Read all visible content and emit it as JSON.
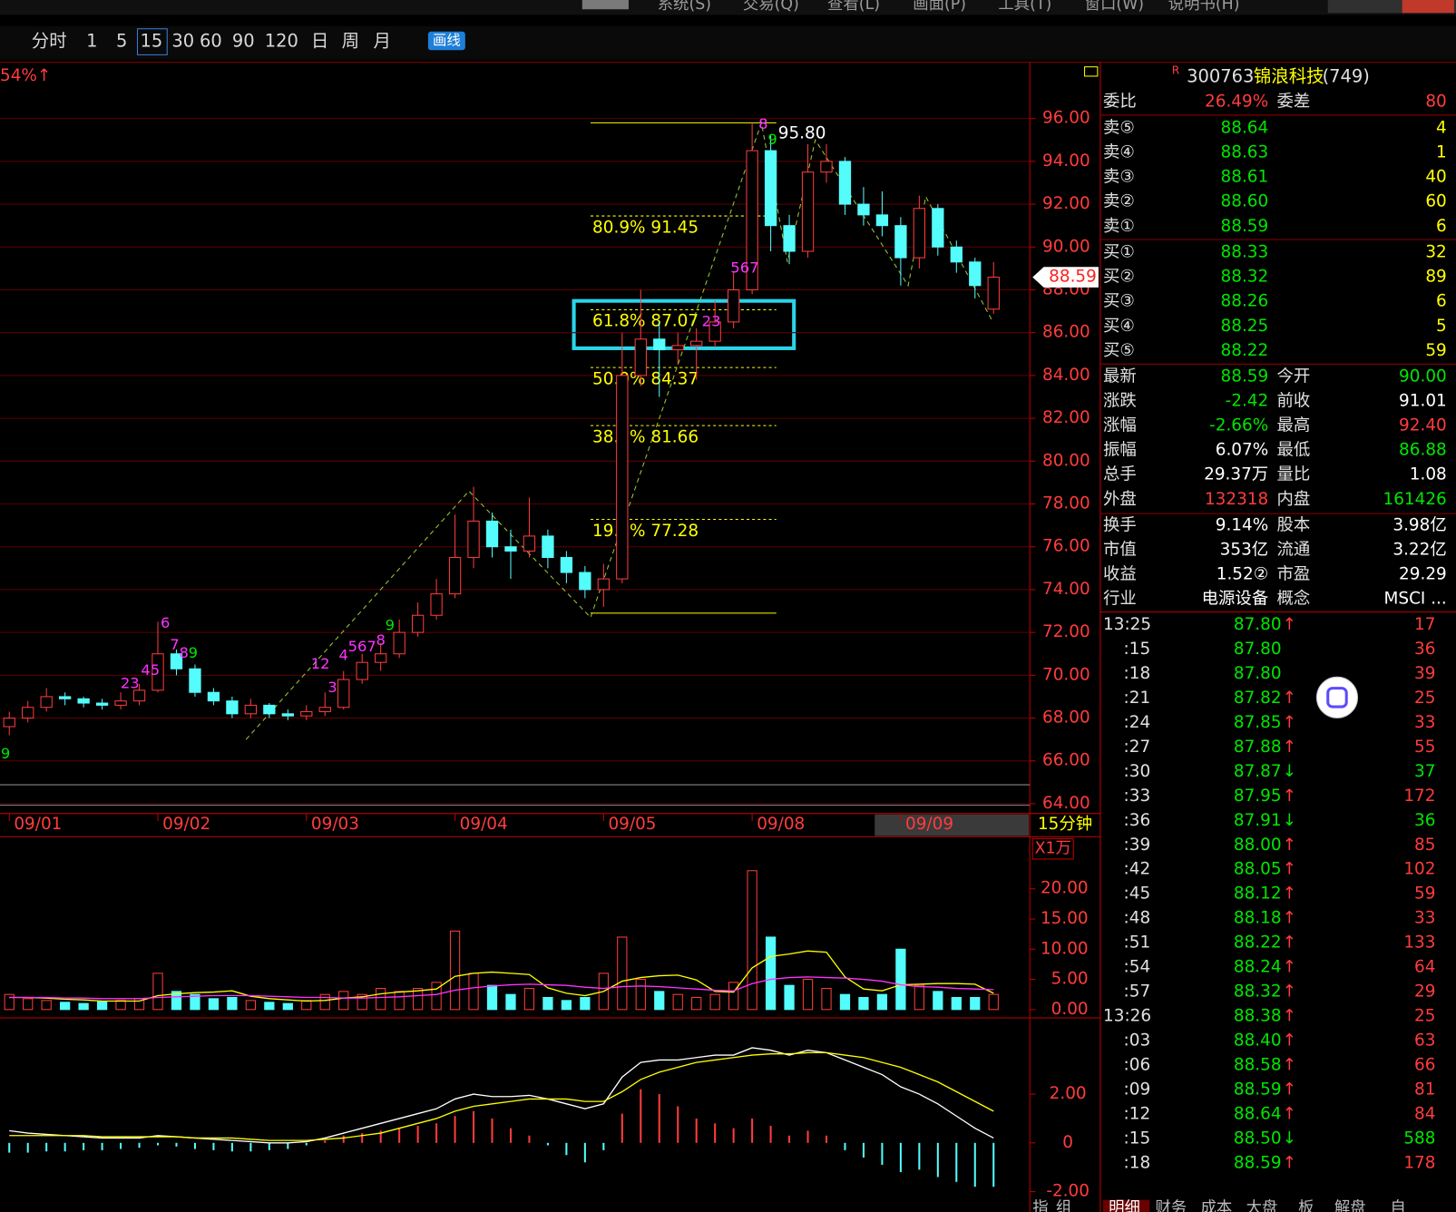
{
  "menu": [
    "系统(S)",
    "交易(Q)",
    "查看(L)",
    "画面(P)",
    "工具(T)",
    "窗口(W)",
    "说明书(H)"
  ],
  "toolbar": [
    "分时",
    "1",
    "5",
    "15",
    "30",
    "60",
    "90",
    "120",
    "日",
    "周",
    "月"
  ],
  "draw_button": "画线",
  "corner_label": "54%↑",
  "price_chart": {
    "type": "candlestick",
    "ylim": [
      63.8,
      98.5
    ],
    "yticks": [
      {
        "value": 96,
        "label": "96.00"
      },
      {
        "value": 94,
        "label": "94.00"
      },
      {
        "value": 92,
        "label": "92.00"
      },
      {
        "value": 90,
        "label": "90.00"
      },
      {
        "value": 88,
        "label": "88.00"
      },
      {
        "value": 86,
        "label": "86.00"
      },
      {
        "value": 84,
        "label": "84.00"
      },
      {
        "value": 82,
        "label": "82.00"
      },
      {
        "value": 80,
        "label": "80.00"
      },
      {
        "value": 78,
        "label": "78.00"
      },
      {
        "value": 76,
        "label": "76.00"
      },
      {
        "value": 74,
        "label": "74.00"
      },
      {
        "value": 72,
        "label": "72.00"
      },
      {
        "value": 70,
        "label": "70.00"
      },
      {
        "value": 68,
        "label": "68.00"
      },
      {
        "value": 66,
        "label": "66.00"
      },
      {
        "value": 64,
        "label": "64.00"
      }
    ],
    "x_labels": [
      {
        "label": "09/01",
        "at": 0
      },
      {
        "label": "09/02",
        "at": 8
      },
      {
        "label": "09/03",
        "at": 16
      },
      {
        "label": "09/04",
        "at": 24
      },
      {
        "label": "09/05",
        "at": 32
      },
      {
        "label": "09/08",
        "at": 40
      },
      {
        "label": "09/09",
        "at": 48
      }
    ],
    "period_label": "15分钟",
    "candles": [
      [
        67.6,
        68.3,
        67.2,
        68.0
      ],
      [
        68.0,
        68.8,
        67.8,
        68.5
      ],
      [
        68.5,
        69.4,
        68.3,
        69.0
      ],
      [
        69.0,
        69.2,
        68.6,
        68.9
      ],
      [
        68.9,
        69.0,
        68.5,
        68.7
      ],
      [
        68.7,
        68.9,
        68.4,
        68.6
      ],
      [
        68.6,
        69.2,
        68.4,
        68.8
      ],
      [
        68.8,
        69.6,
        68.6,
        69.3
      ],
      [
        69.3,
        72.5,
        69.2,
        71.0
      ],
      [
        71.0,
        71.2,
        70.0,
        70.3
      ],
      [
        70.3,
        70.5,
        69.0,
        69.2
      ],
      [
        69.2,
        69.4,
        68.6,
        68.8
      ],
      [
        68.8,
        69.0,
        68.0,
        68.2
      ],
      [
        68.2,
        68.9,
        68.0,
        68.6
      ],
      [
        68.6,
        68.7,
        68.0,
        68.2
      ],
      [
        68.2,
        68.4,
        67.9,
        68.1
      ],
      [
        68.1,
        68.6,
        67.9,
        68.3
      ],
      [
        68.3,
        69.2,
        68.1,
        68.5
      ],
      [
        68.5,
        70.2,
        68.4,
        69.8
      ],
      [
        69.8,
        71.0,
        69.6,
        70.6
      ],
      [
        70.6,
        71.5,
        70.2,
        71.0
      ],
      [
        71.0,
        72.6,
        70.8,
        72.0
      ],
      [
        72.0,
        73.4,
        71.8,
        72.8
      ],
      [
        72.8,
        74.5,
        72.6,
        73.8
      ],
      [
        73.8,
        77.5,
        73.6,
        75.5
      ],
      [
        75.5,
        78.8,
        75.0,
        77.2
      ],
      [
        77.2,
        77.6,
        75.5,
        76.0
      ],
      [
        76.0,
        76.8,
        74.5,
        75.8
      ],
      [
        75.8,
        78.3,
        75.5,
        76.5
      ],
      [
        76.5,
        76.8,
        75.0,
        75.5
      ],
      [
        75.5,
        75.8,
        74.3,
        74.8
      ],
      [
        74.8,
        75.1,
        73.6,
        74.0
      ],
      [
        74.0,
        75.2,
        73.2,
        74.5
      ],
      [
        74.5,
        86.0,
        74.3,
        84.0
      ],
      [
        84.0,
        88.0,
        83.5,
        85.7
      ],
      [
        85.7,
        86.5,
        83.0,
        85.2
      ],
      [
        85.2,
        86.0,
        84.5,
        85.4
      ],
      [
        85.4,
        86.2,
        83.8,
        85.6
      ],
      [
        85.6,
        87.5,
        85.3,
        86.5
      ],
      [
        86.5,
        88.8,
        86.2,
        88.0
      ],
      [
        88.0,
        95.8,
        87.8,
        94.5
      ],
      [
        94.5,
        95.2,
        89.8,
        91.0
      ],
      [
        91.0,
        91.5,
        89.2,
        89.8
      ],
      [
        89.8,
        94.8,
        89.5,
        93.5
      ],
      [
        93.5,
        94.8,
        93.0,
        94.0
      ],
      [
        94.0,
        94.2,
        91.5,
        92.0
      ],
      [
        92.0,
        92.8,
        91.0,
        91.5
      ],
      [
        91.5,
        92.6,
        90.5,
        91.0
      ],
      [
        91.0,
        91.4,
        88.2,
        89.5
      ],
      [
        89.5,
        92.4,
        89.0,
        91.8
      ],
      [
        91.8,
        92.0,
        89.6,
        90.0
      ],
      [
        90.0,
        90.3,
        88.8,
        89.3
      ],
      [
        89.3,
        89.5,
        87.6,
        88.2
      ],
      [
        87.1,
        89.3,
        86.88,
        88.59
      ]
    ],
    "zigzag": [
      {
        "at": 12.75,
        "price": 67.0
      },
      {
        "at": 24.75,
        "price": 78.6
      },
      {
        "at": 31.3,
        "price": 72.7
      },
      {
        "at": 40.5,
        "price": 95.8
      },
      {
        "at": 41.9,
        "price": 89.3
      },
      {
        "at": 43.4,
        "price": 95.0
      },
      {
        "at": 48.4,
        "price": 88.2
      },
      {
        "at": 49.35,
        "price": 92.35
      },
      {
        "at": 52.9,
        "price": 86.6
      }
    ],
    "fib": [
      {
        "price": 95.8
      },
      {
        "label": "80.9% 91.45",
        "price": 91.45
      },
      {
        "label": "61.8% 87.07",
        "price": 87.07
      },
      {
        "label": "50.0% 84.37",
        "price": 84.37
      },
      {
        "label": "38.2% 81.66",
        "price": 81.66
      },
      {
        "label": "19.1% 77.28",
        "price": 77.28
      },
      {
        "price": 72.9
      }
    ],
    "high_label": {
      "value": 95.8,
      "label": "95.80"
    },
    "last_price": 88.59,
    "annotations": [
      {
        "text": "9",
        "at": -0.2,
        "price": 66.3,
        "color": "#00e600"
      },
      {
        "text": "23",
        "at": 6.5,
        "price": 69.6,
        "color": "#ff33ff"
      },
      {
        "text": "45",
        "at": 7.6,
        "price": 70.2,
        "color": "#ff33ff"
      },
      {
        "text": "6",
        "at": 8.4,
        "price": 72.4,
        "color": "#ff33ff"
      },
      {
        "text": "7",
        "at": 8.9,
        "price": 71.4,
        "color": "#ff33ff"
      },
      {
        "text": "8",
        "at": 9.4,
        "price": 71.0,
        "color": "#ff33ff"
      },
      {
        "text": "9",
        "at": 9.9,
        "price": 71.0,
        "color": "#00e600"
      },
      {
        "text": "12",
        "at": 16.75,
        "price": 70.5,
        "color": "#ff33ff"
      },
      {
        "text": "3",
        "at": 17.4,
        "price": 69.4,
        "color": "#ff33ff"
      },
      {
        "text": "4",
        "at": 18.0,
        "price": 70.9,
        "color": "#ff33ff"
      },
      {
        "text": "567",
        "at": 19.0,
        "price": 71.3,
        "color": "#ff33ff"
      },
      {
        "text": "8",
        "at": 20.0,
        "price": 71.6,
        "color": "#ff33ff"
      },
      {
        "text": "9",
        "at": 20.5,
        "price": 72.3,
        "color": "#00e600"
      },
      {
        "text": "23",
        "at": 37.8,
        "price": 86.5,
        "color": "#ff33ff"
      },
      {
        "text": "567",
        "at": 39.6,
        "price": 89.0,
        "color": "#ff33ff"
      },
      {
        "text": "8",
        "at": 40.6,
        "price": 95.7,
        "color": "#ff33ff"
      },
      {
        "text": "9",
        "at": 41.1,
        "price": 95.0,
        "color": "#00e600"
      }
    ]
  },
  "volume_chart": {
    "type": "bar",
    "unit_label": "X1万",
    "ylim": [
      0,
      28
    ],
    "yticks": [
      {
        "value": 0,
        "label": "0.00"
      },
      {
        "value": 5,
        "label": "5.00"
      },
      {
        "value": 10,
        "label": "10.00"
      },
      {
        "value": 15,
        "label": "15.00"
      },
      {
        "value": 20,
        "label": "20.00"
      }
    ],
    "values": [
      2.5,
      1.8,
      1.5,
      1.2,
      1.0,
      1.3,
      1.5,
      1.8,
      6.0,
      3.0,
      2.5,
      1.8,
      2.0,
      1.5,
      1.2,
      1.0,
      1.5,
      2.5,
      3.0,
      2.5,
      3.5,
      3.0,
      3.5,
      4.5,
      13.0,
      6.0,
      4.0,
      2.5,
      3.5,
      2.0,
      1.5,
      2.0,
      6.0,
      12.0,
      5.0,
      3.0,
      2.5,
      2.0,
      2.5,
      4.5,
      23.0,
      12.0,
      4.0,
      5.0,
      3.5,
      2.5,
      2.0,
      2.5,
      10.0,
      4.0,
      3.0,
      2.0,
      2.0,
      2.5
    ],
    "series": [
      {
        "color": "#ffff00",
        "values": [
          2.0,
          2.0,
          1.9,
          1.7,
          1.6,
          1.4,
          1.4,
          1.4,
          2.3,
          2.6,
          2.8,
          2.9,
          3.1,
          2.2,
          1.8,
          1.6,
          1.4,
          1.5,
          1.9,
          2.1,
          2.6,
          2.9,
          3.1,
          3.4,
          5.5,
          6.0,
          6.2,
          6.0,
          5.8,
          3.6,
          2.7,
          2.3,
          3.0,
          4.7,
          5.3,
          5.6,
          5.7,
          4.9,
          3.0,
          2.9,
          6.9,
          8.8,
          9.2,
          9.7,
          9.5,
          5.4,
          3.4,
          3.1,
          4.1,
          4.2,
          4.3,
          4.3,
          4.2,
          2.7
        ]
      },
      {
        "color": "#ff33ff",
        "values": [
          2.0,
          2.0,
          2.0,
          1.9,
          1.9,
          1.8,
          1.8,
          1.8,
          2.0,
          2.1,
          2.2,
          2.3,
          2.3,
          2.3,
          2.2,
          2.1,
          2.0,
          2.0,
          1.9,
          1.9,
          2.0,
          2.1,
          2.3,
          2.5,
          3.2,
          3.6,
          3.9,
          4.1,
          4.2,
          4.1,
          4.0,
          3.7,
          3.5,
          3.8,
          3.9,
          3.8,
          3.6,
          3.4,
          3.2,
          3.1,
          4.3,
          5.0,
          5.3,
          5.4,
          5.3,
          5.2,
          5.0,
          4.7,
          4.1,
          3.8,
          3.7,
          3.5,
          3.4,
          3.3
        ]
      }
    ]
  },
  "macd_chart": {
    "type": "macd",
    "ylim": [
      -2.53,
      5.05
    ],
    "yticks": [
      {
        "value": 2,
        "label": "2.00"
      },
      0,
      {
        "value": -2,
        "label": "-2.00"
      }
    ],
    "hist": [
      -0.4,
      -0.4,
      -0.35,
      -0.35,
      -0.3,
      -0.3,
      -0.25,
      -0.2,
      -0.1,
      -0.15,
      -0.25,
      -0.3,
      -0.35,
      -0.35,
      -0.3,
      -0.25,
      -0.1,
      0.1,
      0.3,
      0.4,
      0.5,
      0.6,
      0.7,
      0.8,
      1.1,
      1.3,
      1.0,
      0.6,
      0.3,
      -0.1,
      -0.5,
      -0.8,
      -0.3,
      1.2,
      2.2,
      2.0,
      1.5,
      1.0,
      0.8,
      0.6,
      1.0,
      0.7,
      0.3,
      0.5,
      0.3,
      -0.3,
      -0.6,
      -0.9,
      -1.2,
      -1.1,
      -1.4,
      -1.6,
      -1.8,
      -1.8
    ],
    "series": [
      {
        "color": "#ffffff",
        "values": [
          0.5,
          0.4,
          0.35,
          0.3,
          0.25,
          0.2,
          0.2,
          0.2,
          0.3,
          0.25,
          0.2,
          0.15,
          0.1,
          0.05,
          0.0,
          0.0,
          0.05,
          0.2,
          0.4,
          0.6,
          0.8,
          1.0,
          1.2,
          1.4,
          1.8,
          2.0,
          1.9,
          1.9,
          1.95,
          1.8,
          1.6,
          1.4,
          1.6,
          2.7,
          3.3,
          3.4,
          3.4,
          3.5,
          3.6,
          3.6,
          3.9,
          3.8,
          3.6,
          3.8,
          3.7,
          3.4,
          3.1,
          2.8,
          2.3,
          2.0,
          1.6,
          1.1,
          0.6,
          0.2
        ]
      },
      {
        "color": "#ffff00",
        "values": [
          0.3,
          0.3,
          0.3,
          0.3,
          0.3,
          0.25,
          0.25,
          0.25,
          0.25,
          0.25,
          0.2,
          0.2,
          0.2,
          0.15,
          0.1,
          0.1,
          0.1,
          0.15,
          0.2,
          0.3,
          0.4,
          0.6,
          0.8,
          1.0,
          1.3,
          1.5,
          1.6,
          1.7,
          1.8,
          1.8,
          1.8,
          1.7,
          1.7,
          2.1,
          2.6,
          2.9,
          3.1,
          3.3,
          3.4,
          3.5,
          3.6,
          3.65,
          3.65,
          3.7,
          3.7,
          3.6,
          3.5,
          3.3,
          3.1,
          2.8,
          2.5,
          2.1,
          1.7,
          1.3
        ]
      }
    ]
  },
  "quote": {
    "flag": "R",
    "code": "300763",
    "name": "锦浪科技",
    "count": "(749)",
    "ratio": [
      "委比",
      "26.49%",
      "委差",
      "80"
    ],
    "asks": [
      [
        "卖⑤",
        "88.64",
        "4"
      ],
      [
        "卖④",
        "88.63",
        "1"
      ],
      [
        "卖③",
        "88.61",
        "40"
      ],
      [
        "卖②",
        "88.60",
        "60"
      ],
      [
        "卖①",
        "88.59",
        "6"
      ]
    ],
    "bids": [
      [
        "买①",
        "88.33",
        "32"
      ],
      [
        "买②",
        "88.32",
        "89"
      ],
      [
        "买③",
        "88.26",
        "6"
      ],
      [
        "买④",
        "88.25",
        "5"
      ],
      [
        "买⑤",
        "88.22",
        "59"
      ]
    ],
    "stats": [
      [
        "最新",
        "88.59",
        "今开",
        "90.00"
      ],
      [
        "涨跌",
        "-2.42",
        "前收",
        "91.01"
      ],
      [
        "涨幅",
        "-2.66%",
        "最高",
        "92.40"
      ],
      [
        "振幅",
        "6.07%",
        "最低",
        "86.88"
      ],
      [
        "总手",
        "29.37万",
        "量比",
        "1.08"
      ],
      [
        "外盘",
        "132318",
        "内盘",
        "161426"
      ],
      [
        "换手",
        "9.14%",
        "股本",
        "3.98亿"
      ],
      [
        "市值",
        "353亿",
        "流通",
        "3.22亿"
      ],
      [
        "收益",
        "1.52②",
        "市盈",
        "29.29"
      ],
      [
        "行业",
        "电源设备",
        "概念",
        "MSCI ..."
      ]
    ],
    "stat_colors": [
      [
        "#00e600",
        "#00e600"
      ],
      [
        "#00e600",
        "#ffffff"
      ],
      [
        "#00e600",
        "#ff3c3c"
      ],
      [
        "#ffffff",
        "#00e600"
      ],
      [
        "#ffffff",
        "#ffffff"
      ],
      [
        "#ff3c3c",
        "#00e600"
      ],
      [
        "#ffffff",
        "#ffffff"
      ],
      [
        "#ffffff",
        "#ffffff"
      ],
      [
        "#ffffff",
        "#ffffff"
      ],
      [
        "#ffffff",
        "#ffffff"
      ]
    ],
    "ticks": [
      {
        "time": "13:25",
        "price": "87.80",
        "arrow": "↑",
        "volume": "17"
      },
      {
        "time": ":15",
        "price": "87.80",
        "volume": "36"
      },
      {
        "time": ":18",
        "price": "87.80",
        "volume": "39"
      },
      {
        "time": ":21",
        "price": "87.82",
        "arrow": "↑",
        "volume": "25"
      },
      {
        "time": ":24",
        "price": "87.85",
        "arrow": "↑",
        "volume": "33"
      },
      {
        "time": ":27",
        "price": "87.88",
        "arrow": "↑",
        "volume": "55"
      },
      {
        "time": ":30",
        "price": "87.87",
        "arrow": "↓",
        "volume": "37"
      },
      {
        "time": ":33",
        "price": "87.95",
        "arrow": "↑",
        "volume": "172"
      },
      {
        "time": ":36",
        "price": "87.91",
        "arrow": "↓",
        "volume": "36"
      },
      {
        "time": ":39",
        "price": "88.00",
        "arrow": "↑",
        "volume": "85"
      },
      {
        "time": ":42",
        "price": "88.05",
        "arrow": "↑",
        "volume": "102"
      },
      {
        "time": ":45",
        "price": "88.12",
        "arrow": "↑",
        "volume": "59"
      },
      {
        "time": ":48",
        "price": "88.18",
        "arrow": "↑",
        "volume": "33"
      },
      {
        "time": ":51",
        "price": "88.22",
        "arrow": "↑",
        "volume": "133"
      },
      {
        "time": ":54",
        "price": "88.24",
        "arrow": "↑",
        "volume": "64"
      },
      {
        "time": ":57",
        "price": "88.32",
        "arrow": "↑",
        "volume": "29"
      },
      {
        "time": "13:26",
        "price": "88.38",
        "arrow": "↑",
        "volume": "25"
      },
      {
        "time": ":03",
        "price": "88.40",
        "arrow": "↑",
        "volume": "63"
      },
      {
        "time": ":06",
        "price": "88.58",
        "arrow": "↑",
        "volume": "66"
      },
      {
        "time": ":09",
        "price": "88.59",
        "arrow": "↑",
        "volume": "81"
      },
      {
        "time": ":12",
        "price": "88.64",
        "arrow": "↑",
        "volume": "84"
      },
      {
        "time": ":15",
        "price": "88.50",
        "arrow": "↓",
        "volume": "588"
      },
      {
        "time": ":18",
        "price": "88.59",
        "arrow": "↑",
        "volume": "178"
      }
    ]
  },
  "bottom_left": [
    "指",
    "组"
  ],
  "bottom_tabs": [
    "明细",
    "财务",
    "成本",
    "大盘",
    "板",
    "解盘",
    "自"
  ]
}
